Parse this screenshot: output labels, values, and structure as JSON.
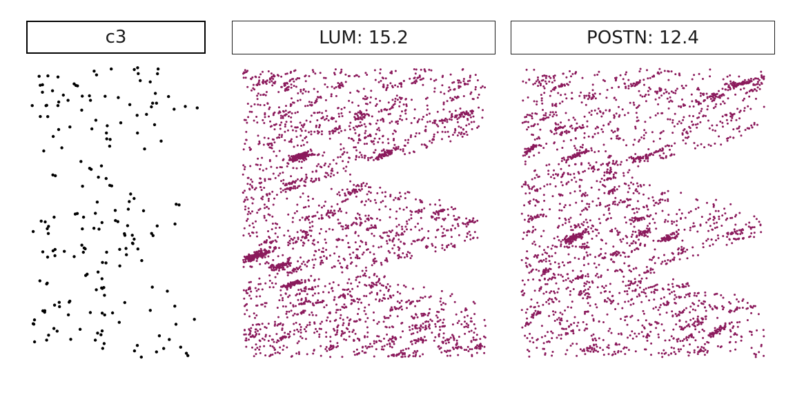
{
  "panels": [
    {
      "title": "c3"
    },
    {
      "title": "LUM: 15.2"
    },
    {
      "title": "POSTN: 12.4"
    }
  ],
  "colors": {
    "cluster_points": "#000000",
    "expression_points": "#8b1a5c",
    "frame": "#1a1a1a"
  },
  "chart_data": [
    {
      "type": "scatter",
      "title": "c3",
      "xlabel": "",
      "ylabel": "",
      "grid": false,
      "axes_visible": false,
      "color": "#000000",
      "description_of_points": "sparse black points",
      "seed": 11,
      "x": [],
      "y": []
    },
    {
      "type": "scatter",
      "title": "LUM: 15.2",
      "xlabel": "",
      "ylabel": "",
      "grid": false,
      "axes_visible": false,
      "color": "#8b1a5c",
      "seed": 23,
      "x": [],
      "y": []
    },
    {
      "type": "scatter",
      "title": "POSTN: 12.4",
      "xlabel": "",
      "ylabel": "",
      "grid": false,
      "axes_visible": false,
      "color": "#8b1a5c",
      "seed": 37,
      "x": [],
      "y": []
    }
  ]
}
